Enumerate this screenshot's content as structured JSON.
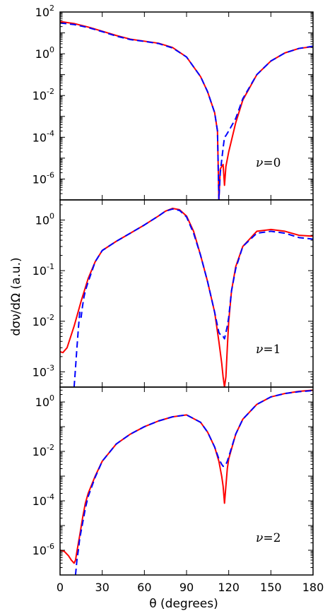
{
  "chart_data": {
    "type": "line",
    "xlabel": "θ (degrees)",
    "ylabel": "dσν/dΩ (a.u.)",
    "xlim": [
      0,
      180
    ],
    "xticks": [
      "0",
      "30",
      "60",
      "90",
      "120",
      "150",
      "180"
    ],
    "xtick_values": [
      0,
      30,
      60,
      90,
      120,
      150,
      180
    ],
    "yscale": "log",
    "grid": false,
    "colors": {
      "solid": "#ff0000",
      "dashed": "#0000ff"
    },
    "panels": [
      {
        "annotation": "ν = 0",
        "annotation_sym": "ν",
        "annotation_eq": "=0",
        "ylim": [
          1e-07,
          100
        ],
        "yticks": [
          {
            "value": 100,
            "base": "10",
            "exp": "2"
          },
          {
            "value": 1,
            "base": "10",
            "exp": "0"
          },
          {
            "value": 0.01,
            "base": "10",
            "exp": "-2"
          },
          {
            "value": 0.0001,
            "base": "10",
            "exp": "-4"
          },
          {
            "value": 1e-06,
            "base": "10",
            "exp": "-6"
          }
        ],
        "series": [
          {
            "style": "solid",
            "x": [
              0,
              10,
              20,
              30,
              40,
              50,
              60,
              70,
              80,
              90,
              100,
              105,
              110,
              112,
              113,
              114,
              115,
              116,
              117,
              118,
              120,
              125,
              130,
              140,
              150,
              160,
              170,
              180
            ],
            "y": [
              35,
              28,
              19,
              12,
              7.5,
              5,
              4,
              3.2,
              2,
              0.7,
              0.08,
              0.015,
              0.0015,
              0.0002,
              1e-07,
              3e-06,
              4e-06,
              5e-06,
              5e-07,
              4e-06,
              2e-05,
              0.0005,
              0.006,
              0.1,
              0.45,
              1.1,
              1.8,
              2.2
            ]
          },
          {
            "style": "dashed",
            "x": [
              0,
              10,
              20,
              30,
              40,
              50,
              60,
              70,
              80,
              90,
              100,
              105,
              110,
              112,
              113,
              114,
              115,
              116,
              117,
              118,
              120,
              125,
              130,
              140,
              150,
              160,
              170,
              180
            ],
            "y": [
              30,
              25,
              18,
              11.5,
              7,
              4.8,
              3.9,
              3.1,
              1.9,
              0.7,
              0.08,
              0.015,
              0.0015,
              0.0002,
              1e-07,
              2e-06,
              8e-06,
              3e-05,
              0.0001,
              0.00012,
              0.0002,
              0.0008,
              0.007,
              0.1,
              0.45,
              1.1,
              1.8,
              2.3
            ]
          }
        ]
      },
      {
        "annotation": "ν = 1",
        "annotation_sym": "ν",
        "annotation_eq": "=1",
        "ylim": [
          0.0005,
          2.5
        ],
        "yticks": [
          {
            "value": 1,
            "base": "10",
            "exp": "0"
          },
          {
            "value": 0.1,
            "base": "10",
            "exp": "-1"
          },
          {
            "value": 0.01,
            "base": "10",
            "exp": "-2"
          },
          {
            "value": 0.001,
            "base": "10",
            "exp": "-3"
          }
        ],
        "series": [
          {
            "style": "solid",
            "x": [
              0,
              2,
              5,
              10,
              15,
              20,
              25,
              30,
              40,
              50,
              60,
              70,
              75,
              80,
              85,
              90,
              95,
              100,
              105,
              110,
              113,
              115,
              116,
              117,
              118,
              119,
              120,
              122,
              125,
              130,
              140,
              150,
              160,
              170,
              180
            ],
            "y": [
              0.0025,
              0.0024,
              0.003,
              0.008,
              0.025,
              0.07,
              0.15,
              0.25,
              0.38,
              0.55,
              0.8,
              1.2,
              1.5,
              1.7,
              1.6,
              1.2,
              0.6,
              0.2,
              0.06,
              0.015,
              0.004,
              0.0015,
              0.0008,
              0.0005,
              0.0008,
              0.003,
              0.01,
              0.04,
              0.12,
              0.3,
              0.6,
              0.65,
              0.6,
              0.5,
              0.48
            ]
          },
          {
            "style": "dashed",
            "x": [
              10,
              11,
              12,
              13,
              14,
              15,
              16,
              17,
              18,
              20,
              25,
              30,
              40,
              50,
              60,
              70,
              75,
              80,
              85,
              90,
              95,
              100,
              105,
              110,
              113,
              115,
              116,
              117,
              118,
              119,
              120,
              122,
              125,
              130,
              140,
              150,
              160,
              170,
              180
            ],
            "y": [
              0.0005,
              0.0012,
              0.003,
              0.007,
              0.015,
              0.012,
              0.02,
              0.03,
              0.04,
              0.06,
              0.15,
              0.25,
              0.38,
              0.55,
              0.8,
              1.2,
              1.5,
              1.65,
              1.55,
              1.15,
              0.55,
              0.2,
              0.06,
              0.015,
              0.006,
              0.005,
              0.005,
              0.0045,
              0.006,
              0.008,
              0.012,
              0.04,
              0.11,
              0.3,
              0.55,
              0.6,
              0.55,
              0.45,
              0.42
            ]
          }
        ]
      },
      {
        "annotation": "ν = 2",
        "annotation_sym": "ν",
        "annotation_eq": "=2",
        "ylim": [
          1e-07,
          4
        ],
        "yticks": [
          {
            "value": 1,
            "base": "10",
            "exp": "0"
          },
          {
            "value": 0.01,
            "base": "10",
            "exp": "-2"
          },
          {
            "value": 0.0001,
            "base": "10",
            "exp": "-4"
          },
          {
            "value": 1e-06,
            "base": "10",
            "exp": "-6"
          }
        ],
        "series": [
          {
            "style": "solid",
            "x": [
              0,
              3,
              6,
              8,
              10,
              11,
              12,
              14,
              16,
              18,
              20,
              25,
              30,
              40,
              50,
              60,
              70,
              80,
              90,
              100,
              105,
              110,
              113,
              115,
              116,
              117,
              118,
              119,
              120,
              125,
              130,
              140,
              150,
              160,
              170,
              180
            ],
            "y": [
              1e-06,
              9e-07,
              6e-07,
              4e-07,
              3e-07,
              4e-07,
              9e-07,
              4e-06,
              2e-05,
              8e-05,
              0.0002,
              0.001,
              0.004,
              0.02,
              0.05,
              0.1,
              0.17,
              0.25,
              0.3,
              0.15,
              0.06,
              0.015,
              0.004,
              0.001,
              0.0004,
              8e-05,
              0.0004,
              0.002,
              0.005,
              0.05,
              0.2,
              0.8,
              1.6,
              2.2,
              2.7,
              3
            ]
          },
          {
            "style": "dashed",
            "x": [
              11,
              12,
              13,
              14,
              16,
              18,
              20,
              25,
              30,
              40,
              50,
              60,
              70,
              80,
              90,
              100,
              105,
              110,
              113,
              115,
              116,
              117,
              118,
              119,
              120,
              125,
              130,
              140,
              150,
              160,
              170,
              180
            ],
            "y": [
              1e-07,
              4e-07,
              1e-06,
              3e-06,
              1.2e-05,
              5e-05,
              0.00015,
              0.0009,
              0.004,
              0.02,
              0.05,
              0.1,
              0.17,
              0.25,
              0.3,
              0.15,
              0.06,
              0.015,
              0.005,
              0.003,
              0.0025,
              0.0025,
              0.003,
              0.004,
              0.006,
              0.05,
              0.2,
              0.8,
              1.6,
              2.2,
              2.6,
              2.9
            ]
          }
        ]
      }
    ]
  }
}
